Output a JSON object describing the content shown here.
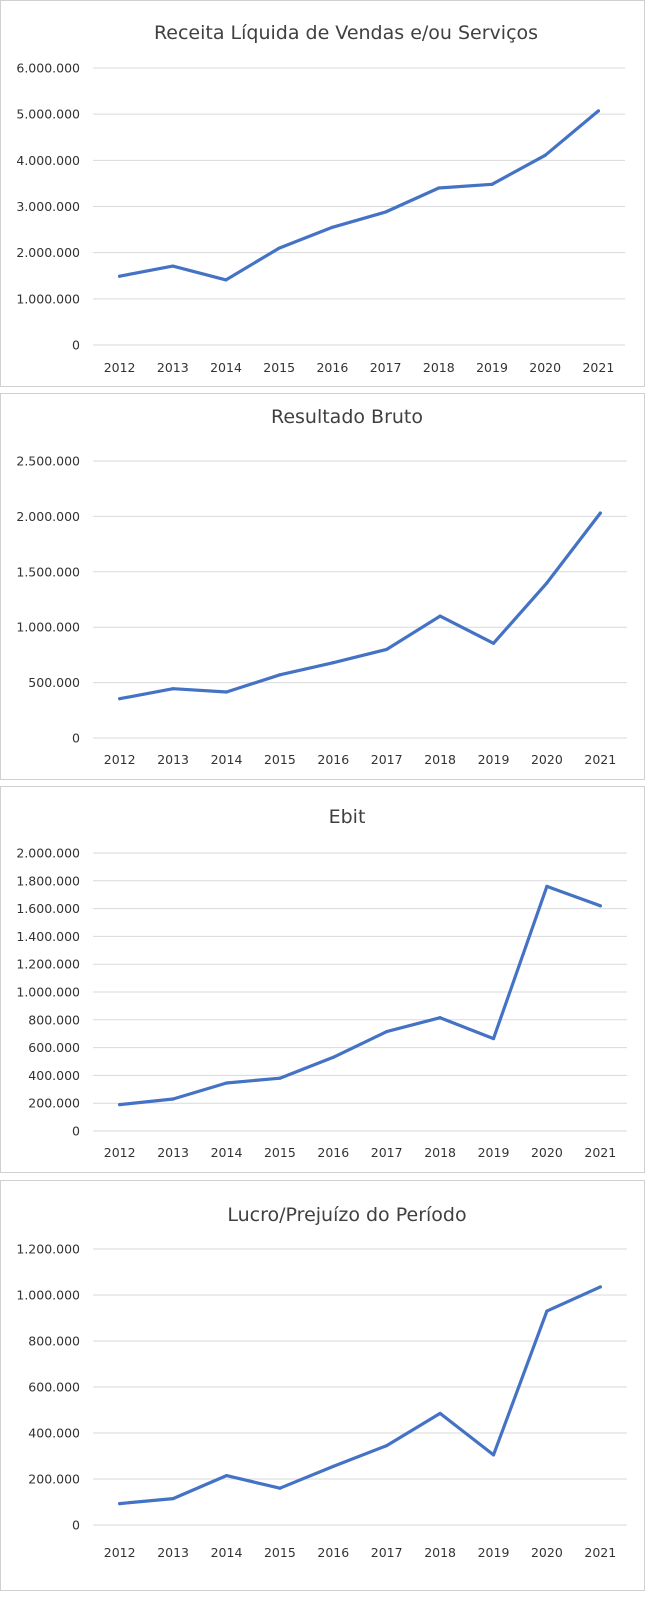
{
  "series_color": "#4472C4",
  "chart_data": [
    {
      "type": "line",
      "title": "Receita Líquida de Vendas e/ou Serviços",
      "categories": [
        "2012",
        "2013",
        "2014",
        "2015",
        "2016",
        "2017",
        "2018",
        "2019",
        "2020",
        "2021"
      ],
      "values": [
        1490000,
        1710000,
        1410000,
        2100000,
        2550000,
        2880000,
        3400000,
        3480000,
        4110000,
        5070000
      ],
      "ylim": [
        0,
        6000000
      ],
      "yticks": [
        0,
        1000000,
        2000000,
        3000000,
        4000000,
        5000000,
        6000000
      ],
      "ytick_labels": [
        "0",
        "1.000.000",
        "2.000.000",
        "3.000.000",
        "4.000.000",
        "5.000.000",
        "6.000.000"
      ],
      "grid": true,
      "legend": "none"
    },
    {
      "type": "line",
      "title": "Resultado Bruto",
      "categories": [
        "2012",
        "2013",
        "2014",
        "2015",
        "2016",
        "2017",
        "2018",
        "2019",
        "2020",
        "2021"
      ],
      "values": [
        355000,
        445000,
        415000,
        570000,
        680000,
        800000,
        1100000,
        855000,
        1400000,
        2030000
      ],
      "ylim": [
        0,
        2500000
      ],
      "yticks": [
        0,
        500000,
        1000000,
        1500000,
        2000000,
        2500000
      ],
      "ytick_labels": [
        "0",
        "500.000",
        "1.000.000",
        "1.500.000",
        "2.000.000",
        "2.500.000"
      ],
      "grid": true,
      "legend": "none"
    },
    {
      "type": "line",
      "title": "Ebit",
      "categories": [
        "2012",
        "2013",
        "2014",
        "2015",
        "2016",
        "2017",
        "2018",
        "2019",
        "2020",
        "2021"
      ],
      "values": [
        190000,
        230000,
        345000,
        380000,
        530000,
        715000,
        815000,
        665000,
        1760000,
        1620000
      ],
      "ylim": [
        0,
        2000000
      ],
      "yticks": [
        0,
        200000,
        400000,
        600000,
        800000,
        1000000,
        1200000,
        1400000,
        1600000,
        1800000,
        2000000
      ],
      "ytick_labels": [
        "0",
        "200.000",
        "400.000",
        "600.000",
        "800.000",
        "1.000.000",
        "1.200.000",
        "1.400.000",
        "1.600.000",
        "1.800.000",
        "2.000.000"
      ],
      "grid": true,
      "legend": "none"
    },
    {
      "type": "line",
      "title": "Lucro/Prejuízo do Período",
      "categories": [
        "2012",
        "2013",
        "2014",
        "2015",
        "2016",
        "2017",
        "2018",
        "2019",
        "2020",
        "2021"
      ],
      "values": [
        93000,
        115000,
        215000,
        160000,
        255000,
        345000,
        485000,
        305000,
        930000,
        1035000
      ],
      "ylim": [
        0,
        1200000
      ],
      "yticks": [
        0,
        200000,
        400000,
        600000,
        800000,
        1000000,
        1200000
      ],
      "ytick_labels": [
        "0",
        "200.000",
        "400.000",
        "600.000",
        "800.000",
        "1.000.000",
        "1.200.000"
      ],
      "grid": true,
      "legend": "none"
    }
  ]
}
